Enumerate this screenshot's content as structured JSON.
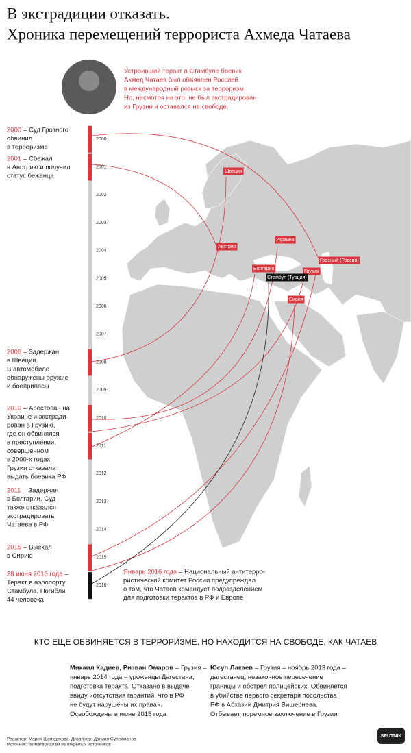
{
  "header": {
    "title_lines": [
      "В экстрадиции отказать.",
      "Хроника перемещений террориста Ахмеда Чатаева"
    ],
    "intro_lines": [
      "Устроивший теракт в Стамбуле боевик",
      "Ахмед Чатаев был объявлен Россией",
      "в международный розыск за терроризм.",
      "Но, несмотря на это, не был экстрадирован",
      "из Грузии и оставался на свободе."
    ]
  },
  "timeline": {
    "years": [
      "2000",
      "2001",
      "2002",
      "2003",
      "2004",
      "2005",
      "2006",
      "2007",
      "2008",
      "2009",
      "2010",
      "2011",
      "2012",
      "2013",
      "2014",
      "2015",
      "2016"
    ],
    "events": [
      {
        "date": "2000",
        "lines": [
          "– Суд Грозного",
          "обвинил",
          "в терроризме"
        ]
      },
      {
        "date": "2001",
        "lines": [
          "– Сбежал",
          "в Австрию и получил",
          "статус беженца"
        ]
      },
      {
        "date": "2008",
        "lines": [
          "– Задержан",
          "в Швеции.",
          "В автомобиле",
          "обнаружены оружие",
          "и боеприпасы"
        ]
      },
      {
        "date": "2010",
        "lines": [
          "– Арестован на",
          "Украине и экстради-",
          "рован в Грузию,",
          "где он обвинялся",
          "в преступлении,",
          "совершенном",
          "в 2000-х годах.",
          "Грузия отказала",
          "выдать боевика РФ"
        ]
      },
      {
        "date": "2011",
        "lines": [
          "– Задержан",
          "в Болгарии. Суд",
          "также отказался",
          "экстрадировать",
          "Чатаева в РФ"
        ]
      },
      {
        "date": "2015",
        "lines": [
          "– Выехал",
          "в Сирию"
        ]
      },
      {
        "date": "28 июня 2016 года",
        "lines": [
          "–",
          "Теракт в аэропорту",
          "Стамбула. Погибли",
          "44 человека"
        ]
      }
    ]
  },
  "map": {
    "places": [
      "Швеция",
      "Австрия",
      "Украина",
      "Болгария",
      "Грузия",
      "Грозный (Россия)",
      "Стамбул (Турция)",
      "Сирия"
    ],
    "note": {
      "date": "Январь 2016 года",
      "lines": [
        "– Национальный антитерро-",
        "ристический комитет России предупреждал",
        "о том, что Чатаев командует подразделением",
        "для подготовки терактов в РФ и Европе"
      ]
    }
  },
  "others": {
    "heading": "КТО ЕЩЕ ОБВИНЯЕТСЯ В ТЕРРОРИЗМЕ, НО НАХОДИТСЯ НА СВОБОДЕ, КАК ЧАТАЕВ",
    "items": [
      {
        "names": "Микаил Кадиев, Ризван Омаров",
        "lines": [
          "– Грузия –",
          "январь 2014 года – уроженцы Дагестана,",
          "подготовка теракта. Отказано в выдаче",
          "ввиду «отсутствия гарантий, что в РФ",
          "не будут нарушены их права».",
          "Освобождены в июне 2015 года"
        ]
      },
      {
        "names": "Юсуп Лакаев",
        "lines": [
          "– Грузия – ноябрь 2013 года –",
          "дагестанец, незаконное пересечение",
          "границы и обстрел полицейских. Обвиняется",
          "в убийстве первого секретаря посольства",
          "РФ в Абхазии Дмитрия Вишернева.",
          "Отбывает тюремное заключение в Грузии"
        ]
      }
    ]
  },
  "footer": {
    "lines": [
      "Редактор: Мария Шелудякова. Дизайнер: Даниил Сулейманов",
      "Источник: по материалам из открытых источников"
    ],
    "logo": "SPUTNIK"
  }
}
